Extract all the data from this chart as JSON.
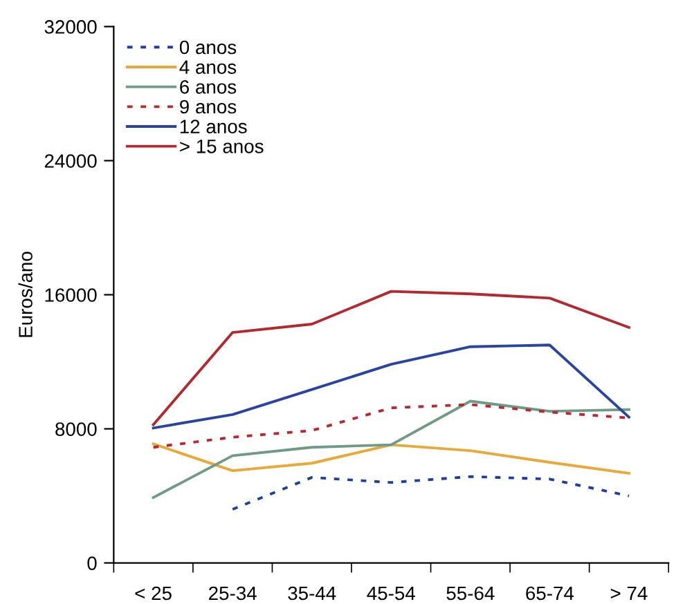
{
  "chart_data": {
    "type": "line",
    "ylabel": "Euros/ano",
    "categories": [
      "< 25",
      "25-34",
      "35-44",
      "45-54",
      "55-64",
      "65-74",
      "> 74"
    ],
    "ylim": [
      0,
      32000
    ],
    "yticks": [
      0,
      8000,
      16000,
      24000,
      32000
    ],
    "grid": false,
    "legend": "top left",
    "marker": "none",
    "series": [
      {
        "name": "0 anos",
        "color": "#1f3f9f",
        "line_style": "dotted",
        "values": [
          null,
          3200,
          5100,
          4800,
          5150,
          5000,
          4000
        ]
      },
      {
        "name": "4 anos",
        "color": "#e8a93a",
        "line_style": "solid",
        "values": [
          7100,
          5500,
          5950,
          7050,
          6700,
          6000,
          5350
        ]
      },
      {
        "name": "6 anos",
        "color": "#6f9a86",
        "line_style": "solid",
        "values": [
          3900,
          6400,
          6900,
          7050,
          9650,
          9050,
          9150
        ]
      },
      {
        "name": "9 anos",
        "color": "#b8292f",
        "line_style": "dotted",
        "values": [
          6900,
          7500,
          7900,
          9250,
          9450,
          9000,
          8650
        ]
      },
      {
        "name": "12 anos",
        "color": "#2a45a0",
        "line_style": "solid",
        "values": [
          8050,
          8850,
          10350,
          11850,
          12900,
          13000,
          8700
        ]
      },
      {
        "name": "> 15 anos",
        "color": "#b22a30",
        "line_style": "solid",
        "values": [
          8250,
          13750,
          14250,
          16200,
          16050,
          15800,
          14050
        ]
      }
    ]
  }
}
